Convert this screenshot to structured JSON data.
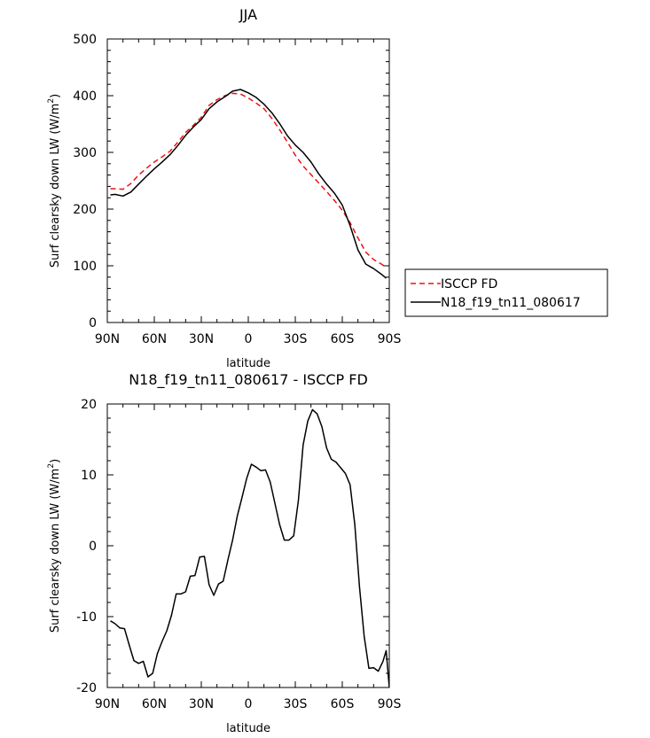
{
  "chart_data": [
    {
      "type": "line",
      "title": "JJA",
      "xlabel": "latitude",
      "ylabel": "Surf clearsky down LW (W/m",
      "ylabel_sup": "2",
      "ylabel_end": ")",
      "xlim": [
        90,
        -90
      ],
      "ylim": [
        0,
        500
      ],
      "x_ticks": [
        {
          "value": 90,
          "label": "90N"
        },
        {
          "value": 60,
          "label": "60N"
        },
        {
          "value": 30,
          "label": "30N"
        },
        {
          "value": 0,
          "label": "0"
        },
        {
          "value": -30,
          "label": "30S"
        },
        {
          "value": -60,
          "label": "60S"
        },
        {
          "value": -90,
          "label": "90S"
        }
      ],
      "y_ticks": [
        0,
        100,
        200,
        300,
        400,
        500
      ],
      "legend": {
        "placement": "right",
        "entries": [
          {
            "label": "ISCCP FD",
            "color": "#ee1111",
            "dash": "dashed"
          },
          {
            "label": "N18_f19_tn11_080617",
            "color": "#000000",
            "dash": "solid"
          }
        ]
      },
      "series": [
        {
          "name": "ISCCP FD",
          "color": "#ee1111",
          "dash": "dashed",
          "x": [
            88,
            85,
            80,
            75,
            70,
            65,
            60,
            55,
            50,
            45,
            40,
            35,
            30,
            25,
            20,
            15,
            10,
            5,
            0,
            -5,
            -10,
            -15,
            -20,
            -25,
            -30,
            -35,
            -40,
            -45,
            -50,
            -55,
            -60,
            -65,
            -70,
            -75,
            -80,
            -85,
            -88
          ],
          "y": [
            236,
            236,
            235,
            245,
            260,
            272,
            283,
            292,
            302,
            318,
            335,
            348,
            362,
            383,
            393,
            400,
            404,
            403,
            396,
            387,
            377,
            360,
            340,
            318,
            295,
            276,
            261,
            246,
            231,
            215,
            198,
            176,
            149,
            124,
            111,
            103,
            97
          ]
        },
        {
          "name": "N18_f19_tn11_080617",
          "color": "#000000",
          "dash": "solid",
          "x": [
            88,
            85,
            80,
            75,
            70,
            65,
            60,
            55,
            50,
            45,
            40,
            35,
            30,
            25,
            20,
            15,
            10,
            5,
            0,
            -5,
            -10,
            -15,
            -20,
            -25,
            -30,
            -35,
            -40,
            -45,
            -50,
            -55,
            -60,
            -65,
            -70,
            -75,
            -80,
            -85,
            -88
          ],
          "y": [
            225,
            226,
            223,
            230,
            244,
            258,
            271,
            283,
            296,
            312,
            330,
            345,
            358,
            377,
            389,
            398,
            408,
            411,
            405,
            397,
            385,
            370,
            351,
            329,
            313,
            300,
            283,
            262,
            244,
            228,
            207,
            171,
            128,
            103,
            95,
            85,
            78
          ]
        }
      ]
    },
    {
      "type": "line",
      "title": "N18_f19_tn11_080617 - ISCCP FD",
      "xlabel": "latitude",
      "ylabel": "Surf clearsky down LW (W/m",
      "ylabel_sup": "2",
      "ylabel_end": ")",
      "xlim": [
        90,
        -90
      ],
      "ylim": [
        -20,
        20
      ],
      "x_ticks": [
        {
          "value": 90,
          "label": "90N"
        },
        {
          "value": 60,
          "label": "60N"
        },
        {
          "value": 30,
          "label": "30N"
        },
        {
          "value": 0,
          "label": "0"
        },
        {
          "value": -30,
          "label": "30S"
        },
        {
          "value": -60,
          "label": "60S"
        },
        {
          "value": -90,
          "label": "90S"
        }
      ],
      "y_ticks": [
        -20,
        -10,
        0,
        10,
        20
      ],
      "series": [
        {
          "color": "#000000",
          "dash": "solid",
          "x": [
            88,
            85,
            82,
            79,
            76,
            73,
            70,
            67,
            64,
            61,
            58,
            55,
            52,
            49,
            46,
            43,
            40,
            37,
            34,
            31,
            28,
            25,
            22,
            19,
            16,
            13,
            10,
            7,
            4,
            1,
            -2,
            -5,
            -8,
            -11,
            -14,
            -17,
            -20,
            -23,
            -26,
            -29,
            -32,
            -35,
            -38,
            -41,
            -44,
            -47,
            -50,
            -53,
            -56,
            -59,
            -62,
            -65,
            -68,
            -71,
            -74,
            -77,
            -80,
            -83,
            -86,
            -88,
            -90
          ],
          "y": [
            -10.6,
            -11.0,
            -11.6,
            -11.7,
            -14.0,
            -16.2,
            -16.6,
            -16.3,
            -18.5,
            -18.0,
            -15.2,
            -13.5,
            -12.0,
            -9.8,
            -6.8,
            -6.8,
            -6.5,
            -4.3,
            -4.2,
            -1.6,
            -1.5,
            -5.5,
            -7.0,
            -5.4,
            -5.0,
            -2.0,
            0.8,
            4.2,
            6.8,
            9.5,
            11.5,
            11.1,
            10.6,
            10.7,
            9.0,
            6.0,
            3.0,
            0.8,
            0.8,
            1.4,
            6.4,
            14.2,
            17.6,
            19.2,
            18.6,
            16.8,
            13.8,
            12.2,
            11.8,
            11.0,
            10.2,
            8.6,
            3.0,
            -5.8,
            -12.8,
            -17.3,
            -17.2,
            -17.7,
            -16.3,
            -14.8,
            -20.0
          ]
        }
      ]
    }
  ]
}
